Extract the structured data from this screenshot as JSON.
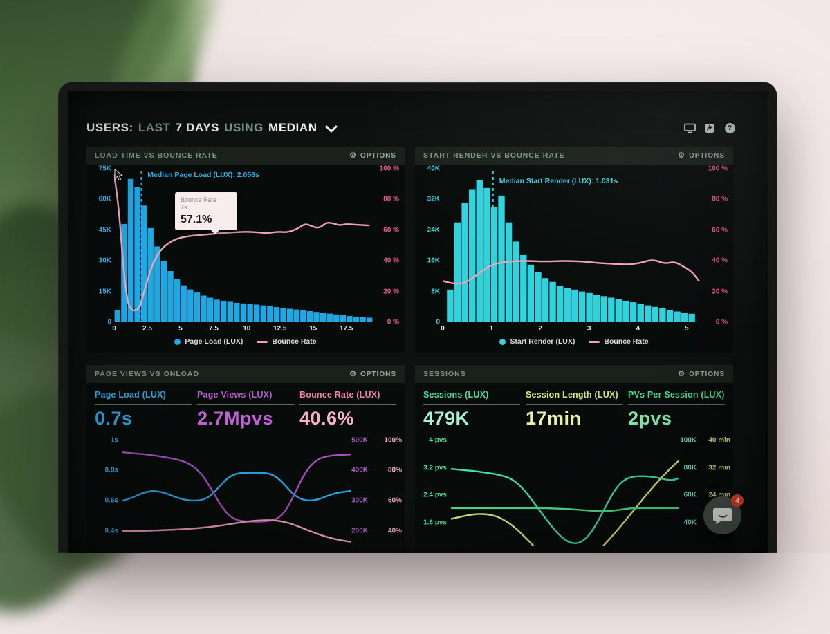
{
  "header": {
    "title": {
      "p1": "USERS:",
      "p2": "LAST",
      "p3": "7 DAYS",
      "p4": "USING",
      "p5": "MEDIAN"
    }
  },
  "icons": {
    "gear": "⚙",
    "help_glyph": "?",
    "toolbar": [
      "display-icon",
      "share-icon",
      "help-icon"
    ]
  },
  "chat_widget": {
    "badge_count": "4"
  },
  "panels": [
    {
      "title": "LOAD TIME VS BOUNCE RATE",
      "options_label": "OPTIONS",
      "median_label": "Median Page Load (LUX): 2.056s",
      "tooltip": {
        "title": "Bounce Rate",
        "subtitle": "7s",
        "value": "57.1%"
      },
      "legend": [
        {
          "marker": "dot",
          "label": "Page Load (LUX)",
          "color": "#1fa8e6"
        },
        {
          "marker": "line",
          "label": "Bounce Rate",
          "color": "#f0a3b8"
        }
      ]
    },
    {
      "title": "START RENDER VS BOUNCE RATE",
      "options_label": "OPTIONS",
      "median_label": "Median Start Render (LUX): 1.031s",
      "legend": [
        {
          "marker": "dot",
          "label": "Start Render (LUX)",
          "color": "#35d3dd"
        },
        {
          "marker": "line",
          "label": "Bounce Rate",
          "color": "#f0a3b8"
        }
      ]
    },
    {
      "title": "PAGE VIEWS VS ONLOAD",
      "options_label": "OPTIONS",
      "metrics": [
        {
          "label": "Page Load (LUX)",
          "value": "0.7s",
          "label_color": "#2fa9e8",
          "value_color": "#2fa9e8"
        },
        {
          "label": "Page Views (LUX)",
          "value": "2.7Mpvs",
          "label_color": "#b55ccb",
          "value_color": "#c45fd8"
        },
        {
          "label": "Bounce Rate (LUX)",
          "value": "40.6%",
          "label_color": "#f27fa5",
          "value_color": "#f8b3cc"
        }
      ]
    },
    {
      "title": "SESSIONS",
      "options_label": "OPTIONS",
      "metrics": [
        {
          "label": "Sessions (LUX)",
          "value": "479K",
          "label_color": "#49dfa4",
          "value_color": "#a9f1d3"
        },
        {
          "label": "Session Length (LUX)",
          "value": "17min",
          "label_color": "#d6e87c",
          "value_color": "#ecf2a8"
        },
        {
          "label": "PVs Per Session (LUX)",
          "value": "2pvs",
          "label_color": "#46df90",
          "value_color": "#86efae"
        }
      ]
    }
  ],
  "chart_data": [
    {
      "title": "LOAD TIME VS BOUNCE RATE",
      "type": "bar+line",
      "x_range": [
        0,
        19.5
      ],
      "x_ticks": [
        "0",
        "2.5",
        "5",
        "7.5",
        "10",
        "12.5",
        "15",
        "17.5"
      ],
      "left_ticks": [
        "75K",
        "60K",
        "45K",
        "30K",
        "15K",
        "0"
      ],
      "left_max": 75,
      "right_ticks": [
        "100 %",
        "80 %",
        "60 %",
        "40 %",
        "20 %",
        "0 %"
      ],
      "bar_color": "#1fa8e6",
      "bar_start": 0,
      "bar_bin": 0.5,
      "bars": [
        6,
        48,
        70,
        66,
        57,
        46,
        37,
        30,
        25,
        21,
        18,
        16,
        14.5,
        13,
        12,
        11,
        10.5,
        10,
        9.5,
        9.2,
        9,
        8.6,
        8.2,
        7.8,
        7.4,
        7,
        6.6,
        6.2,
        5.8,
        5.4,
        5,
        4.6,
        4.2,
        3.8,
        3.4,
        3,
        2.7,
        2.4,
        2.2
      ],
      "line_color": "#f0a3b8",
      "line": {
        "x": [
          0,
          0.3,
          0.7,
          1.0,
          1.3,
          1.6,
          1.9,
          2.2,
          2.6,
          3.0,
          3.5,
          4.0,
          4.6,
          5.2,
          6.0,
          7.0,
          8.0,
          9.0,
          10.0,
          10.8,
          11.6,
          12.4,
          13.0,
          13.6,
          14.0,
          14.4,
          14.8,
          15.2,
          15.6,
          16.0,
          16.5,
          17.0,
          17.5,
          18.2,
          19.2
        ],
        "y": [
          96,
          80,
          35,
          13,
          8,
          7.5,
          9,
          18,
          30,
          40,
          47,
          51,
          54,
          55.5,
          56.5,
          57.1,
          58,
          58.5,
          59,
          58.5,
          58,
          59,
          58.5,
          60,
          62,
          64,
          63,
          61.5,
          62,
          65,
          64.5,
          63,
          64,
          63.5,
          63
        ]
      },
      "median_x": 2.056,
      "median_color": "#2fb3e8"
    },
    {
      "title": "START RENDER VS BOUNCE RATE",
      "type": "bar+line",
      "x_range": [
        0,
        5.3
      ],
      "x_ticks": [
        "0",
        "1",
        "2",
        "3",
        "4",
        "5"
      ],
      "left_ticks": [
        "40K",
        "32K",
        "24K",
        "16K",
        "8K",
        "0"
      ],
      "left_max": 40,
      "right_ticks": [
        "100 %",
        "80 %",
        "60 %",
        "40 %",
        "20 %",
        "0 %"
      ],
      "bar_color": "#2ed3de",
      "bar_start": 0.08,
      "bar_bin": 0.15,
      "bars": [
        8.5,
        26,
        31,
        34.5,
        37,
        35,
        30,
        33,
        26,
        21,
        17.5,
        15,
        13,
        11.5,
        10.5,
        9.5,
        9,
        8.5,
        8,
        7.6,
        7.2,
        6.8,
        6.4,
        6,
        5.6,
        5.2,
        4.8,
        4.4,
        4,
        3.6,
        3.2,
        2.8,
        2.5,
        2.2
      ],
      "line_color": "#f0a3b8",
      "line": {
        "x": [
          0,
          0.25,
          0.5,
          0.75,
          1.0,
          1.3,
          1.7,
          2.1,
          2.5,
          2.9,
          3.2,
          3.5,
          3.8,
          4.05,
          4.3,
          4.55,
          4.75,
          4.95,
          5.1,
          5.25
        ],
        "y": [
          27,
          24.5,
          26,
          32,
          37.5,
          39.5,
          40,
          39.5,
          40,
          39.5,
          38.5,
          38,
          37.5,
          38.5,
          41,
          38,
          39.5,
          36,
          33,
          27
        ]
      },
      "median_x": 1.031,
      "median_color": "#3fd0dc"
    },
    {
      "title": "PAGE VIEWS VS ONLOAD",
      "type": "lines",
      "y_range": [
        0.3,
        1.03
      ],
      "left_ticks": [
        "1s",
        "0.8s",
        "0.6s",
        "0.4s"
      ],
      "left_tick_values": [
        1,
        0.8,
        0.6,
        0.4
      ],
      "right_ticks": [
        [
          "500K",
          "100%"
        ],
        [
          "400K",
          "80%"
        ],
        [
          "300K",
          "60%"
        ],
        [
          "200K",
          "40%"
        ]
      ],
      "series": [
        {
          "name": "Page Load (LUX)",
          "color": "#2aa9e6",
          "values": [
            0.6,
            0.615,
            0.64,
            0.66,
            0.665,
            0.655,
            0.635,
            0.615,
            0.603,
            0.6,
            0.608,
            0.64,
            0.7,
            0.755,
            0.78,
            0.785,
            0.785,
            0.785,
            0.78,
            0.755,
            0.7,
            0.64,
            0.608,
            0.6,
            0.608,
            0.63,
            0.648,
            0.658,
            0.665
          ]
        },
        {
          "name": "Page Views (LUX)",
          "color": "#a94fc0",
          "values": [
            0.92,
            0.915,
            0.91,
            0.905,
            0.898,
            0.89,
            0.88,
            0.868,
            0.85,
            0.815,
            0.755,
            0.67,
            0.575,
            0.505,
            0.472,
            0.464,
            0.462,
            0.462,
            0.466,
            0.48,
            0.53,
            0.63,
            0.745,
            0.83,
            0.875,
            0.893,
            0.9,
            0.903,
            0.906
          ]
        },
        {
          "name": "Bounce Rate (LUX)",
          "color": "#f0a0b8",
          "values": [
            0.4,
            0.4,
            0.401,
            0.402,
            0.404,
            0.406,
            0.408,
            0.411,
            0.414,
            0.418,
            0.423,
            0.429,
            0.436,
            0.444,
            0.453,
            0.461,
            0.467,
            0.471,
            0.472,
            0.469,
            0.459,
            0.443,
            0.422,
            0.4,
            0.38,
            0.362,
            0.348,
            0.337,
            0.329
          ]
        }
      ]
    },
    {
      "title": "SESSIONS",
      "type": "lines",
      "y_range": [
        0.9,
        4.15
      ],
      "left_ticks": [
        "4 pvs",
        "3.2 pvs",
        "2.4 pvs",
        "1.6 pvs"
      ],
      "left_tick_values": [
        4,
        3.2,
        2.4,
        1.6
      ],
      "right_ticks": [
        [
          "100K",
          "40 min"
        ],
        [
          "80K",
          "32 min"
        ],
        [
          "60K",
          "24 min"
        ],
        [
          "40K",
          ""
        ]
      ],
      "series": [
        {
          "name": "Sessions (LUX)",
          "color": "#3fe0b0",
          "values": [
            3.17,
            3.15,
            3.13,
            3.11,
            3.08,
            3.05,
            3.01,
            2.96,
            2.87,
            2.7,
            2.45,
            2.15,
            1.85,
            1.55,
            1.28,
            1.08,
            0.98,
            1.0,
            1.18,
            1.5,
            1.92,
            2.35,
            2.7,
            2.88,
            2.95,
            2.96,
            2.95,
            2.92,
            2.87,
            2.83,
            2.9
          ]
        },
        {
          "name": "Session Length (LUX)",
          "color": "#d8ea7e",
          "values": [
            1.7,
            1.76,
            1.82,
            1.85,
            1.84,
            1.78,
            1.65,
            1.45,
            1.2,
            0.92,
            0.65,
            0.45,
            0.33,
            0.3,
            0.35,
            0.5,
            0.72,
            1.0,
            1.3,
            1.62,
            1.95,
            2.28,
            2.6,
            2.9,
            3.18,
            3.42
          ]
        },
        {
          "name": "PVs Per Session (LUX)",
          "color": "#52e08e",
          "values": [
            2.02,
            2.02,
            2.02,
            2.02,
            2.02,
            2.02,
            2.02,
            2.02,
            2.02,
            2.02,
            2.02,
            2.01,
            2.0,
            1.99,
            1.97,
            1.95,
            1.93,
            1.93,
            1.95,
            1.99,
            2.02,
            2.02,
            2.02,
            2.02,
            2.02,
            2.02
          ]
        }
      ]
    }
  ]
}
